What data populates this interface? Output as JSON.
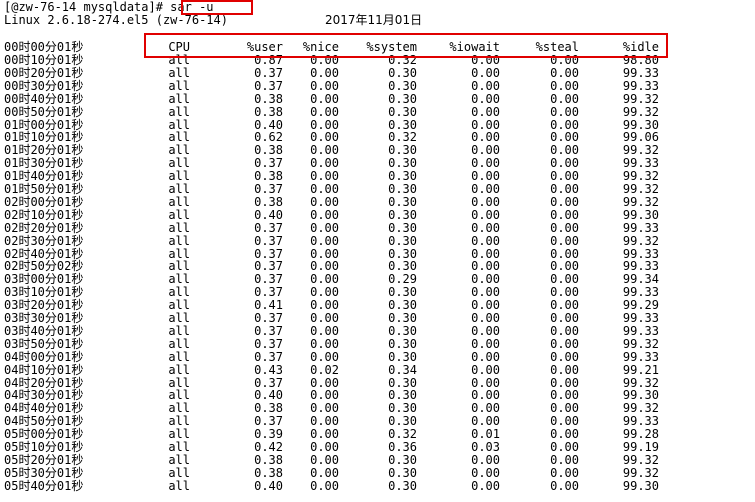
{
  "terminal": {
    "prompt": "[@zw-76-14 mysqldata]",
    "command": "# sar -u",
    "sysinfo": "Linux 2.6.18-274.el5 (zw-76-14)",
    "date": "2017年11月01日",
    "headers": {
      "time": "00时00分01秒",
      "cpu": "CPU",
      "user": "%user",
      "nice": "%nice",
      "system": "%system",
      "iowait": "%iowait",
      "steal": "%steal",
      "idle": "%idle"
    },
    "highlight_color": "#e00000",
    "rows": [
      [
        "00时10分01秒",
        "all",
        "0.87",
        "0.00",
        "0.32",
        "0.00",
        "0.00",
        "98.80"
      ],
      [
        "00时20分01秒",
        "all",
        "0.37",
        "0.00",
        "0.30",
        "0.00",
        "0.00",
        "99.33"
      ],
      [
        "00时30分01秒",
        "all",
        "0.37",
        "0.00",
        "0.30",
        "0.00",
        "0.00",
        "99.33"
      ],
      [
        "00时40分01秒",
        "all",
        "0.38",
        "0.00",
        "0.30",
        "0.00",
        "0.00",
        "99.32"
      ],
      [
        "00时50分01秒",
        "all",
        "0.38",
        "0.00",
        "0.30",
        "0.00",
        "0.00",
        "99.32"
      ],
      [
        "01时00分01秒",
        "all",
        "0.40",
        "0.00",
        "0.30",
        "0.00",
        "0.00",
        "99.30"
      ],
      [
        "01时10分01秒",
        "all",
        "0.62",
        "0.00",
        "0.32",
        "0.00",
        "0.00",
        "99.06"
      ],
      [
        "01时20分01秒",
        "all",
        "0.38",
        "0.00",
        "0.30",
        "0.00",
        "0.00",
        "99.32"
      ],
      [
        "01时30分01秒",
        "all",
        "0.37",
        "0.00",
        "0.30",
        "0.00",
        "0.00",
        "99.33"
      ],
      [
        "01时40分01秒",
        "all",
        "0.38",
        "0.00",
        "0.30",
        "0.00",
        "0.00",
        "99.32"
      ],
      [
        "01时50分01秒",
        "all",
        "0.37",
        "0.00",
        "0.30",
        "0.00",
        "0.00",
        "99.32"
      ],
      [
        "02时00分01秒",
        "all",
        "0.38",
        "0.00",
        "0.30",
        "0.00",
        "0.00",
        "99.32"
      ],
      [
        "02时10分01秒",
        "all",
        "0.40",
        "0.00",
        "0.30",
        "0.00",
        "0.00",
        "99.30"
      ],
      [
        "02时20分01秒",
        "all",
        "0.37",
        "0.00",
        "0.30",
        "0.00",
        "0.00",
        "99.33"
      ],
      [
        "02时30分01秒",
        "all",
        "0.37",
        "0.00",
        "0.30",
        "0.00",
        "0.00",
        "99.32"
      ],
      [
        "02时40分01秒",
        "all",
        "0.37",
        "0.00",
        "0.30",
        "0.00",
        "0.00",
        "99.33"
      ],
      [
        "02时50分02秒",
        "all",
        "0.37",
        "0.00",
        "0.30",
        "0.00",
        "0.00",
        "99.33"
      ],
      [
        "03时00分01秒",
        "all",
        "0.37",
        "0.00",
        "0.29",
        "0.00",
        "0.00",
        "99.34"
      ],
      [
        "03时10分01秒",
        "all",
        "0.37",
        "0.00",
        "0.30",
        "0.00",
        "0.00",
        "99.33"
      ],
      [
        "03时20分01秒",
        "all",
        "0.41",
        "0.00",
        "0.30",
        "0.00",
        "0.00",
        "99.29"
      ],
      [
        "03时30分01秒",
        "all",
        "0.37",
        "0.00",
        "0.30",
        "0.00",
        "0.00",
        "99.33"
      ],
      [
        "03时40分01秒",
        "all",
        "0.37",
        "0.00",
        "0.30",
        "0.00",
        "0.00",
        "99.33"
      ],
      [
        "03时50分01秒",
        "all",
        "0.37",
        "0.00",
        "0.30",
        "0.00",
        "0.00",
        "99.32"
      ],
      [
        "04时00分01秒",
        "all",
        "0.37",
        "0.00",
        "0.30",
        "0.00",
        "0.00",
        "99.33"
      ],
      [
        "04时10分01秒",
        "all",
        "0.43",
        "0.02",
        "0.34",
        "0.00",
        "0.00",
        "99.21"
      ],
      [
        "04时20分01秒",
        "all",
        "0.37",
        "0.00",
        "0.30",
        "0.00",
        "0.00",
        "99.32"
      ],
      [
        "04时30分01秒",
        "all",
        "0.40",
        "0.00",
        "0.30",
        "0.00",
        "0.00",
        "99.30"
      ],
      [
        "04时40分01秒",
        "all",
        "0.38",
        "0.00",
        "0.30",
        "0.00",
        "0.00",
        "99.32"
      ],
      [
        "04时50分01秒",
        "all",
        "0.37",
        "0.00",
        "0.30",
        "0.00",
        "0.00",
        "99.33"
      ],
      [
        "05时00分01秒",
        "all",
        "0.39",
        "0.00",
        "0.32",
        "0.01",
        "0.00",
        "99.28"
      ],
      [
        "05时10分01秒",
        "all",
        "0.42",
        "0.00",
        "0.36",
        "0.03",
        "0.00",
        "99.19"
      ],
      [
        "05时20分01秒",
        "all",
        "0.38",
        "0.00",
        "0.30",
        "0.00",
        "0.00",
        "99.32"
      ],
      [
        "05时30分01秒",
        "all",
        "0.38",
        "0.00",
        "0.30",
        "0.00",
        "0.00",
        "99.32"
      ],
      [
        "05时40分01秒",
        "all",
        "0.40",
        "0.00",
        "0.30",
        "0.00",
        "0.00",
        "99.30"
      ]
    ]
  }
}
